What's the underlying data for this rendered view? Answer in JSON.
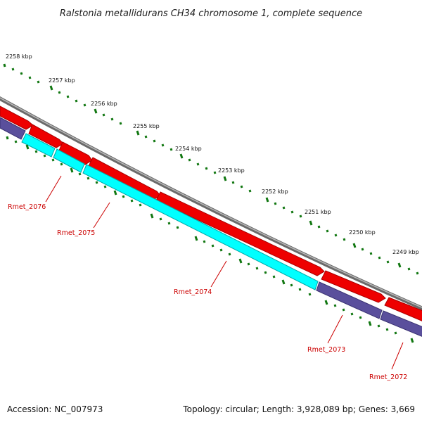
{
  "map": {
    "title": "Ralstonia metallidurans CH34 chromosome 1, complete sequence",
    "accession": "Accession: NC_007973",
    "summary": "Topology: circular; Length: 3,928,089 bp; Genes: 3,669"
  },
  "ticks": [
    "2258 kbp",
    "2257 kbp",
    "2256 kbp",
    "2255 kbp",
    "2254 kbp",
    "2253 kbp",
    "2252 kbp",
    "2251 kbp",
    "2250 kbp",
    "2249 kbp"
  ],
  "genes": [
    "Rmet_2076",
    "Rmet_2075",
    "Rmet_2074",
    "Rmet_2073",
    "Rmet_2072"
  ],
  "colors": {
    "backbone": "#888888",
    "cds": "#ee0000",
    "cds_dark": "#aa0000",
    "gene_cyan": "#00ffff",
    "gene_purple": "#5a4f9c",
    "ticks": "#117711",
    "label": "#cc0000"
  }
}
